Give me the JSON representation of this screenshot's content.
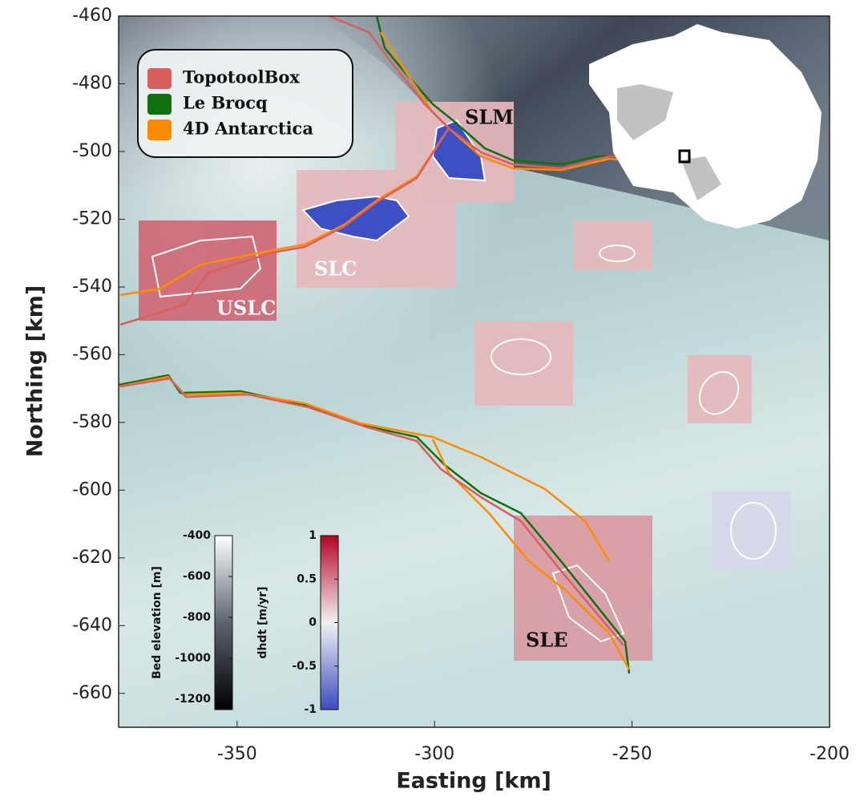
{
  "map": {
    "xlabel": "Easting [km]",
    "ylabel": "Northing [km]",
    "xlim": [
      -380,
      -200
    ],
    "ylim": [
      -670,
      -460
    ],
    "xticks": [
      -350,
      -300,
      -250,
      -200
    ],
    "yticks": [
      -460,
      -480,
      -500,
      -520,
      -540,
      -560,
      -580,
      -600,
      -620,
      -640,
      -660
    ],
    "legend": [
      {
        "name": "TopotoolBox",
        "color": "#d95f5f"
      },
      {
        "name": "Le Brocq",
        "color": "#107010"
      },
      {
        "name": "4D Antarctica",
        "color": "#ff8c00"
      }
    ],
    "lake_labels": [
      "SLM",
      "SLC",
      "USLC",
      "SLE"
    ],
    "colorbars": [
      {
        "label": "Bed elevation [m]",
        "lim": [
          -1250,
          -400
        ],
        "ticks": [
          -400,
          -600,
          -800,
          -1000,
          -1200
        ],
        "colors": [
          "#000000",
          "#5a6470",
          "#ffffff"
        ]
      },
      {
        "label": "dhdt [m/yr]",
        "lim": [
          -1,
          1
        ],
        "ticks": [
          1,
          0.5,
          0,
          -0.5,
          -1
        ],
        "colors": [
          "#3b4cc0",
          "#f2f2f2",
          "#b40426"
        ]
      }
    ]
  }
}
